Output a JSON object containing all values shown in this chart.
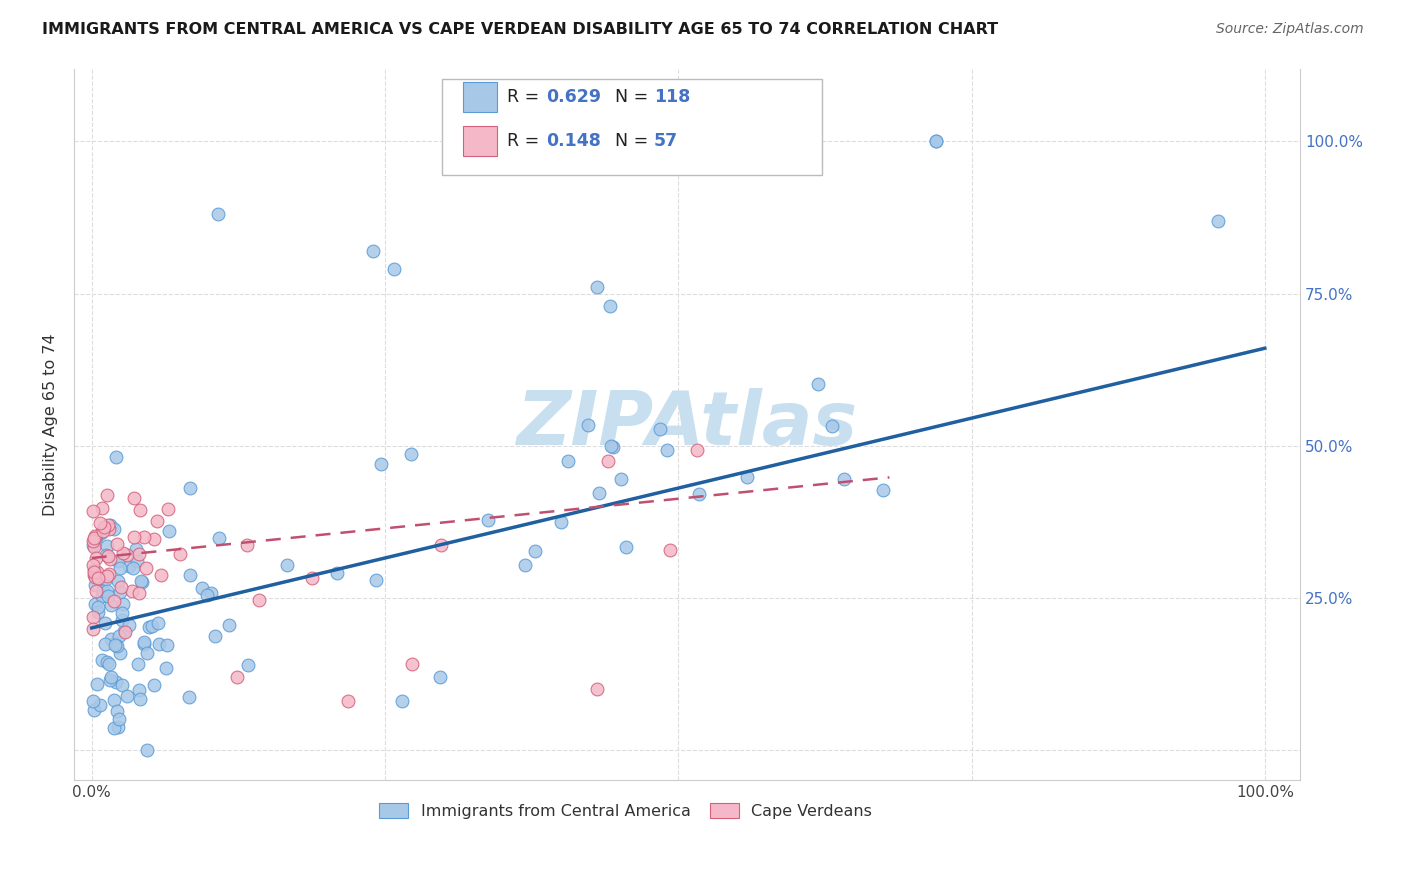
{
  "title": "IMMIGRANTS FROM CENTRAL AMERICA VS CAPE VERDEAN DISABILITY AGE 65 TO 74 CORRELATION CHART",
  "source": "Source: ZipAtlas.com",
  "ylabel": "Disability Age 65 to 74",
  "color_blue": "#a8c8e8",
  "color_blue_edge": "#5b9bd5",
  "color_pink": "#f4b8c8",
  "color_pink_edge": "#d4607a",
  "color_trendline_blue": "#2060a0",
  "color_trendline_pink": "#c05070",
  "color_blue_text": "#4472c4",
  "background_color": "#ffffff",
  "legend_label1": "Immigrants from Central America",
  "legend_label2": "Cape Verdeans",
  "watermark_color": "#c8dff0",
  "grid_color": "#dddddd",
  "right_axis_color": "#4472c4"
}
